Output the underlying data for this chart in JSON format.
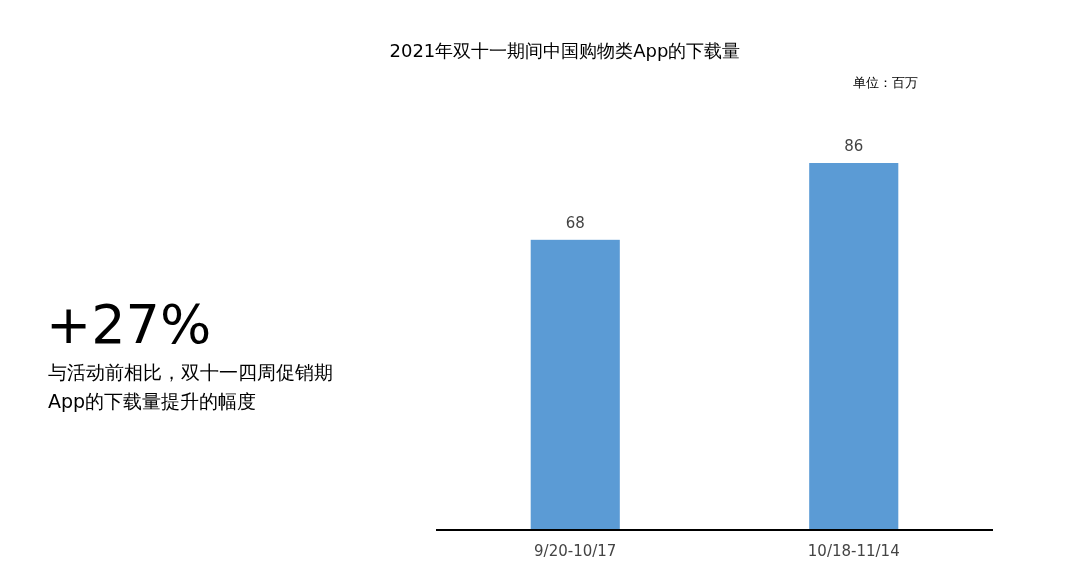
{
  "chart_data": {
    "type": "bar",
    "title": "2021年双十一期间中国购物类App的下载量",
    "categories": [
      "9/20-10/17",
      "10/18-11/14"
    ],
    "values": [
      68,
      86
    ],
    "color": "#5b9bd5",
    "data_labels": true,
    "annotations": [
      "单位：百万",
      "+27%",
      "与活动前相比，双十一四周促销期App的下载量提升的幅度"
    ]
  }
}
